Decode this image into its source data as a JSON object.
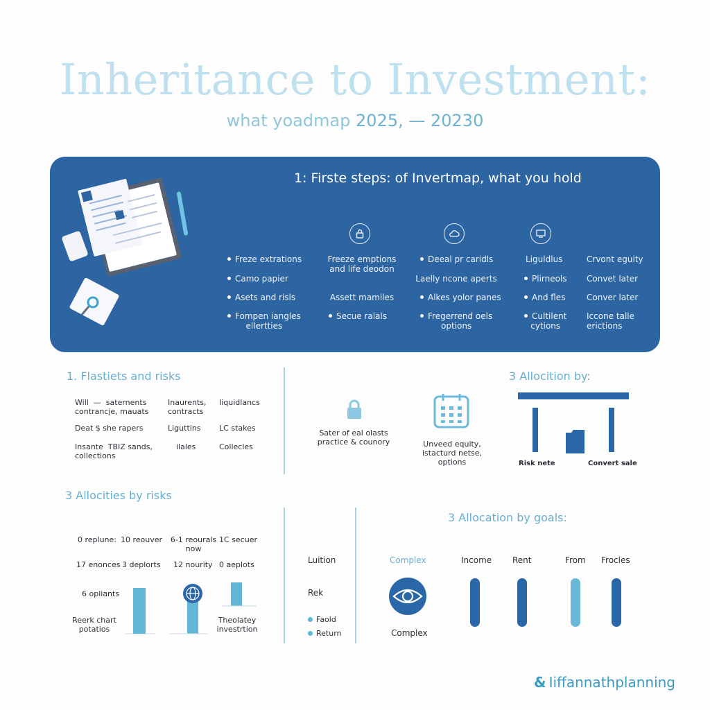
{
  "header": {
    "title": "Inheritance to Investment:",
    "subtitle_prefix": "what yoadmap",
    "subtitle_years": "2025, — 20230"
  },
  "banner": {
    "title": "1: Firste steps:  of Invertmap, what you hold",
    "icons": [
      "lock-icon",
      "cloud-icon",
      "monitor-icon"
    ],
    "col1": [
      "Freze extrations",
      "Camo papier",
      "Asets and risls",
      "Fompen iangles\nellertties"
    ],
    "col2": [
      "Freeze emptions\nand life deodon",
      "Assett mamiles",
      "Secue ralals"
    ],
    "col3": [
      "Deeal pr caridls",
      "Laelly ncone aperts",
      "Alkes yolor panes",
      "Fregerrend oels\noptions"
    ],
    "col4": [
      "Liguldlus",
      "Plirneols",
      "And fles",
      "Cultilent\ncytions"
    ],
    "col5": [
      "Crvont eguity",
      "Convet later",
      "Conver later",
      "Iccone talle\nerictions"
    ]
  },
  "section1": {
    "heading": "1. Flastiets and risks",
    "rows": [
      [
        "Will  —  saternents\ncontrancje, mauats",
        "Inaurents,\ncontracts",
        "Iiquidlancs"
      ],
      [
        "Deat $ she rapers",
        "Liguttins",
        "LC stakes"
      ],
      [
        "Insante  TBIZ sands,\ncollections",
        "ilales",
        "Collecles"
      ]
    ]
  },
  "middle_top": {
    "lock_text": "Sater of eal olasts\npractice & counory",
    "calendar_text": "Unveed equity,\nistacturd netse,\noptions"
  },
  "section2": {
    "heading": "3 Allocition by:",
    "labels": [
      "Risk nete",
      "Convert sale"
    ]
  },
  "section3": {
    "heading": "3 Allocities by risks",
    "grid": [
      [
        "0 replune:",
        "10 reouver",
        "6-1 reourals\nnow",
        "1C secuer"
      ],
      [
        "17 enonces",
        "3 deplorts",
        "12 nourity",
        "0 aeplots"
      ]
    ],
    "left_label": "6 opliants",
    "bottom_left": "Reerk chart\npotatios",
    "bottom_right": "Theolatey\ninvestrtion"
  },
  "section4": {
    "labels": [
      "Luition",
      "Rek"
    ],
    "legend": [
      "Faold",
      "Return"
    ]
  },
  "section5": {
    "heading": "3 Allocation by goals:",
    "icon_label_top": "Complex",
    "icon_label_bottom": "Complex",
    "cols": [
      "Income",
      "Rent",
      "From",
      "Frocles"
    ],
    "colors": [
      "#2a67a6",
      "#2a67a6",
      "#6ab8d8",
      "#2a67a6"
    ]
  },
  "footer": {
    "brand": "Iiffannathplanning"
  }
}
